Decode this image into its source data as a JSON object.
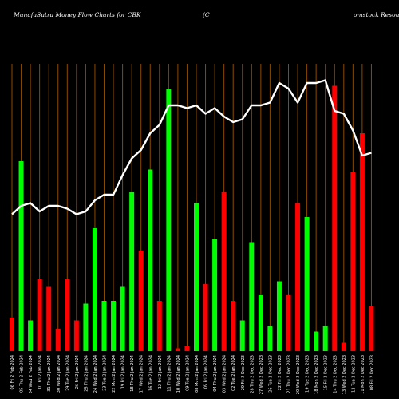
{
  "header": {
    "left": "MunafaSutra  Money Flow  Charts for CBK",
    "mid": "(C",
    "right": "omstock Resour"
  },
  "chart_data": {
    "type": "bar",
    "colors": {
      "up": "#00ff00",
      "down": "#ff0000",
      "grid": "#8b4a00",
      "line": "#ffffff",
      "background": "#000000"
    },
    "ylim": [
      0,
      100
    ],
    "categories": [
      "06 Fri 2 Feb 2024",
      "05 Thu 2 Feb 2024",
      "04 Wed 2 Feb 2024",
      "01 Fri 2 Jan 2024",
      "31 Thu 2 Jan 2024",
      "30 Wed 2 Jan 2024",
      "29 Tue 2 Jan 2024",
      "26 Fri 2 Jan 2024",
      "25 Thu 2 Jan 2024",
      "24 Wed 2 Jan 2024",
      "23 Tue 2 Jan 2024",
      "22 Mon 2 Jan 2024",
      "19 Fri 2 Jan 2024",
      "18 Thu 2 Jan 2024",
      "17 Wed 2 Jan 2024",
      "16 Tue 2 Jan 2024",
      "12 Fri 2 Jan 2024",
      "11 Thu 2 Jan 2024",
      "10 Wed 2 Jan 2024",
      "09 Tue 2 Jan 2024",
      "08 Mon 2 Jan 2024",
      "05 Fri 2 Jan 2024",
      "04 Thu 2 Jan 2024",
      "03 Wed 2 Jan 2024",
      "02 Tue 2 Jan 2024",
      "29 Fri 2 Dec 2023",
      "28 Thu 2 Dec 2023",
      "27 Wed 2 Dec 2023",
      "26 Tue 2 Dec 2023",
      "22 Fri 2 Dec 2023",
      "21 Thu 2 Dec 2023",
      "20 Wed 2 Dec 2023",
      "19 Tue 2 Dec 2023",
      "18 Mon 2 Dec 2023",
      "15 Fri 2 Dec 2023",
      "14 Thu 2 Dec 2023",
      "13 Wed 2 Dec 2023",
      "12 Tue 2 Dec 2023",
      "11 Mon 2 Dec 2023",
      "08 Fri 2 Dec 2023"
    ],
    "bars": [
      {
        "value": 12,
        "color": "down"
      },
      {
        "value": 68,
        "color": "up"
      },
      {
        "value": 11,
        "color": "up"
      },
      {
        "value": 26,
        "color": "down"
      },
      {
        "value": 23,
        "color": "down"
      },
      {
        "value": 8,
        "color": "down"
      },
      {
        "value": 26,
        "color": "down"
      },
      {
        "value": 11,
        "color": "down"
      },
      {
        "value": 17,
        "color": "up"
      },
      {
        "value": 44,
        "color": "up"
      },
      {
        "value": 18,
        "color": "up"
      },
      {
        "value": 18,
        "color": "up"
      },
      {
        "value": 23,
        "color": "up"
      },
      {
        "value": 57,
        "color": "up"
      },
      {
        "value": 36,
        "color": "down"
      },
      {
        "value": 65,
        "color": "up"
      },
      {
        "value": 18,
        "color": "down"
      },
      {
        "value": 94,
        "color": "up"
      },
      {
        "value": 1,
        "color": "down"
      },
      {
        "value": 2,
        "color": "down"
      },
      {
        "value": 53,
        "color": "up"
      },
      {
        "value": 24,
        "color": "down"
      },
      {
        "value": 40,
        "color": "up"
      },
      {
        "value": 57,
        "color": "down"
      },
      {
        "value": 18,
        "color": "down"
      },
      {
        "value": 11,
        "color": "up"
      },
      {
        "value": 39,
        "color": "up"
      },
      {
        "value": 20,
        "color": "up"
      },
      {
        "value": 9,
        "color": "up"
      },
      {
        "value": 25,
        "color": "up"
      },
      {
        "value": 20,
        "color": "down"
      },
      {
        "value": 53,
        "color": "down"
      },
      {
        "value": 48,
        "color": "up"
      },
      {
        "value": 7,
        "color": "up"
      },
      {
        "value": 9,
        "color": "up"
      },
      {
        "value": 95,
        "color": "down"
      },
      {
        "value": 3,
        "color": "down"
      },
      {
        "value": 64,
        "color": "down"
      },
      {
        "value": 78,
        "color": "down"
      },
      {
        "value": 16,
        "color": "down"
      }
    ],
    "line": [
      49,
      52,
      53,
      50,
      52,
      52,
      51,
      49,
      50,
      54,
      56,
      56,
      63,
      69,
      72,
      78,
      81,
      88,
      88,
      87,
      88,
      85,
      87,
      84,
      82,
      83,
      88,
      88,
      89,
      96,
      94,
      89,
      96,
      96,
      97,
      86,
      85,
      79,
      70,
      71
    ]
  }
}
